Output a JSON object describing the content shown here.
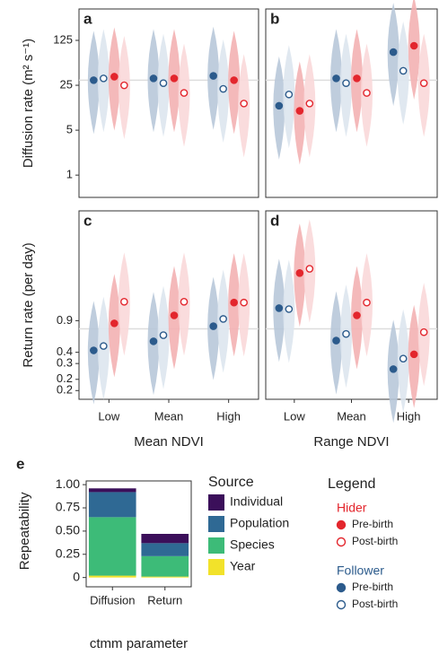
{
  "chart_data": [
    {
      "type": "dot",
      "label": "a",
      "ylabel": "Diffusion rate (m² s⁻¹)",
      "log": true,
      "ylim": [
        0.45,
        385
      ],
      "yticks": [
        1,
        5,
        25,
        125
      ],
      "reference": 30,
      "series": [
        {
          "color": "#2c5b8c",
          "filled": true,
          "violin_color": "#b8c8d9",
          "values": [
            30,
            32,
            35
          ]
        },
        {
          "color": "#2c5b8c",
          "filled": false,
          "violin_color": "#dde5ee",
          "values": [
            32,
            27,
            22
          ]
        },
        {
          "color": "#e3262d",
          "filled": true,
          "violin_color": "#f3b1b3",
          "values": [
            34,
            32,
            30
          ]
        },
        {
          "color": "#e3262d",
          "filled": false,
          "violin_color": "#f9d8d9",
          "values": [
            25,
            19,
            13
          ]
        }
      ]
    },
    {
      "type": "dot",
      "label": "b",
      "log": true,
      "ylim": [
        0.45,
        385
      ],
      "reference": 30,
      "series": [
        {
          "color": "#2c5b8c",
          "filled": true,
          "violin_color": "#b8c8d9",
          "values": [
            12,
            32,
            82
          ]
        },
        {
          "color": "#2c5b8c",
          "filled": false,
          "violin_color": "#dde5ee",
          "values": [
            18,
            27,
            42
          ]
        },
        {
          "color": "#e3262d",
          "filled": true,
          "violin_color": "#f3b1b3",
          "values": [
            10,
            32,
            103
          ]
        },
        {
          "color": "#e3262d",
          "filled": false,
          "violin_color": "#f9d8d9",
          "values": [
            13,
            19,
            27
          ]
        }
      ]
    },
    {
      "type": "dot",
      "label": "c",
      "ylabel": "Return rate (per day)",
      "xlabel": "Mean NDVI",
      "categories": [
        "Low",
        "Mean",
        "High"
      ],
      "log": true,
      "ylim": [
        0.12,
        15
      ],
      "yticks": [
        {
          "value": 0.15,
          "label": "0.2"
        },
        0.2,
        0.3,
        0.4,
        0.9
      ],
      "reference": 0.73,
      "series": [
        {
          "color": "#2c5b8c",
          "filled": true,
          "violin_color": "#b8c8d9",
          "values": [
            0.42,
            0.53,
            0.78
          ]
        },
        {
          "color": "#2c5b8c",
          "filled": false,
          "violin_color": "#dde5ee",
          "values": [
            0.47,
            0.62,
            0.94
          ]
        },
        {
          "color": "#e3262d",
          "filled": true,
          "violin_color": "#f3b1b3",
          "values": [
            0.84,
            1.03,
            1.43
          ]
        },
        {
          "color": "#e3262d",
          "filled": false,
          "violin_color": "#f9d8d9",
          "values": [
            1.46,
            1.46,
            1.43
          ]
        }
      ]
    },
    {
      "type": "dot",
      "label": "d",
      "xlabel": "Range NDVI",
      "categories": [
        "Low",
        "Mean",
        "High"
      ],
      "log": true,
      "ylim": [
        0.12,
        15
      ],
      "reference": 0.73,
      "series": [
        {
          "color": "#2c5b8c",
          "filled": true,
          "violin_color": "#b8c8d9",
          "values": [
            1.24,
            0.54,
            0.26
          ]
        },
        {
          "color": "#2c5b8c",
          "filled": false,
          "violin_color": "#dde5ee",
          "values": [
            1.21,
            0.64,
            0.34
          ]
        },
        {
          "color": "#e3262d",
          "filled": true,
          "violin_color": "#f3b1b3",
          "values": [
            3.05,
            1.03,
            0.38
          ]
        },
        {
          "color": "#e3262d",
          "filled": false,
          "violin_color": "#f9d8d9",
          "values": [
            3.4,
            1.43,
            0.67
          ]
        }
      ]
    },
    {
      "type": "stacked-bar",
      "label": "e",
      "ylabel": "Repeatability",
      "xlabel": "ctmm parameter",
      "legend_title": "Source",
      "categories": [
        "Diffusion",
        "Return"
      ],
      "ylim": [
        -0.1,
        1.04
      ],
      "yticks": [
        0,
        {
          "value": 0.25,
          "label": "0.25"
        },
        {
          "value": 0.5,
          "label": "0.50"
        },
        {
          "value": 0.75,
          "label": "0.75"
        },
        {
          "value": 1,
          "label": "1.00"
        }
      ],
      "series": [
        {
          "name": "Year",
          "color": "#f2e22a",
          "values": [
            0.02,
            0.01
          ]
        },
        {
          "name": "Species",
          "color": "#3dbb78",
          "values": [
            0.63,
            0.22
          ]
        },
        {
          "name": "Population",
          "color": "#2f6994",
          "values": [
            0.27,
            0.14
          ]
        },
        {
          "name": "Individual",
          "color": "#3b0f5a",
          "values": [
            0.04,
            0.1
          ]
        }
      ]
    }
  ],
  "legend": {
    "title": "Legend",
    "groups": [
      {
        "name": "Hider",
        "color": "#e3262d",
        "items": [
          "Pre-birth",
          "Post-birth"
        ]
      },
      {
        "name": "Follower",
        "color": "#2c5b8c",
        "items": [
          "Pre-birth",
          "Post-birth"
        ]
      }
    ]
  }
}
